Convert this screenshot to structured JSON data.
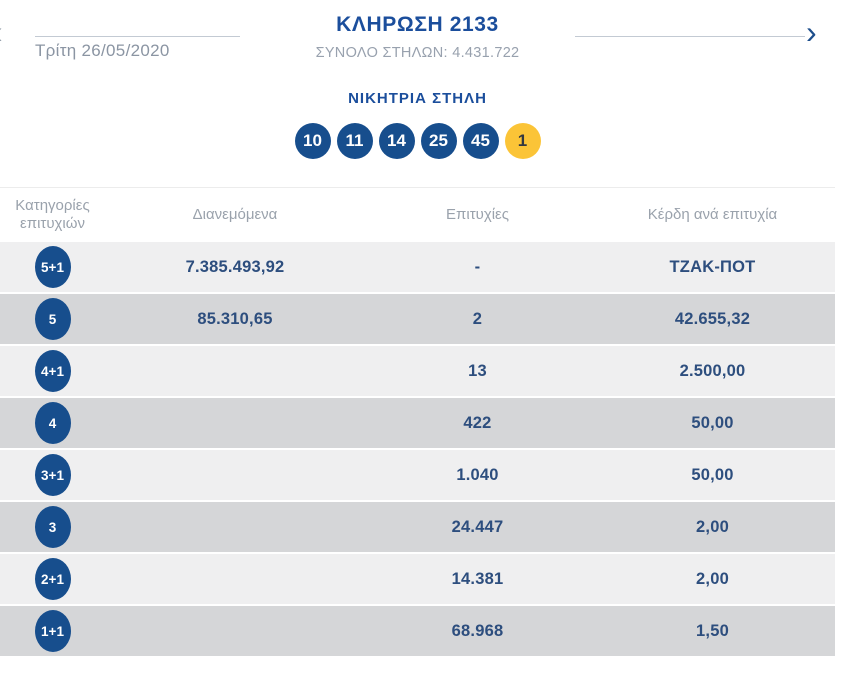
{
  "header": {
    "prev_icon": "‹",
    "next_icon": "›",
    "date": "Τρίτη 26/05/2020",
    "title": "ΚΛΗΡΩΣΗ 2133",
    "subtitle": "ΣΥΝΟΛΟ ΣΤΗΛΩΝ: 4.431.722"
  },
  "winning": {
    "label": "ΝΙΚΗΤΡΙΑ ΣΤΗΛΗ",
    "numbers": [
      "10",
      "11",
      "14",
      "25",
      "45"
    ],
    "bonus": "1"
  },
  "table": {
    "headers": [
      "Κατηγορίες επιτυχιών",
      "Διανεμόμενα",
      "Επιτυχίες",
      "Κέρδη ανά επιτυχία"
    ],
    "rows": [
      {
        "category": "5+1",
        "distributed": "7.385.493,92",
        "winners": "-",
        "prize": "ΤΖΑΚ-ΠΟΤ"
      },
      {
        "category": "5",
        "distributed": "85.310,65",
        "winners": "2",
        "prize": "42.655,32"
      },
      {
        "category": "4+1",
        "distributed": "",
        "winners": "13",
        "prize": "2.500,00"
      },
      {
        "category": "4",
        "distributed": "",
        "winners": "422",
        "prize": "50,00"
      },
      {
        "category": "3+1",
        "distributed": "",
        "winners": "1.040",
        "prize": "50,00"
      },
      {
        "category": "3",
        "distributed": "",
        "winners": "24.447",
        "prize": "2,00"
      },
      {
        "category": "2+1",
        "distributed": "",
        "winners": "14.381",
        "prize": "2,00"
      },
      {
        "category": "1+1",
        "distributed": "",
        "winners": "68.968",
        "prize": "1,50"
      }
    ]
  },
  "colors": {
    "primary_blue": "#1b4e9c",
    "ball_blue": "#174e8d",
    "bonus_yellow": "#fbc437",
    "value_navy": "#2d4e7e",
    "row_light": "#efeff0",
    "row_dark": "#d5d6d8",
    "muted_gray": "#98a1ae"
  }
}
